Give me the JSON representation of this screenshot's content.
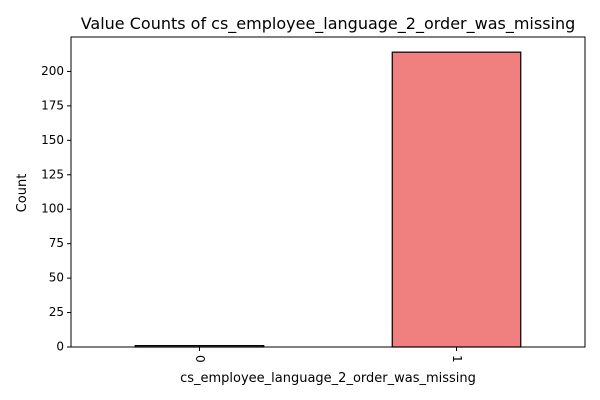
{
  "chart_data": {
    "type": "bar",
    "title": "Value Counts of cs_employee_language_2_order_was_missing",
    "xlabel": "cs_employee_language_2_order_was_missing",
    "ylabel": "Count",
    "categories": [
      "0",
      "1"
    ],
    "values": [
      1,
      214
    ],
    "ylim": [
      0,
      225
    ],
    "yticks": [
      0,
      25,
      50,
      75,
      100,
      125,
      150,
      175,
      200
    ],
    "bar_color": "#f08080",
    "bar_edge_color": "#000000",
    "grid": false,
    "legend": "none"
  }
}
